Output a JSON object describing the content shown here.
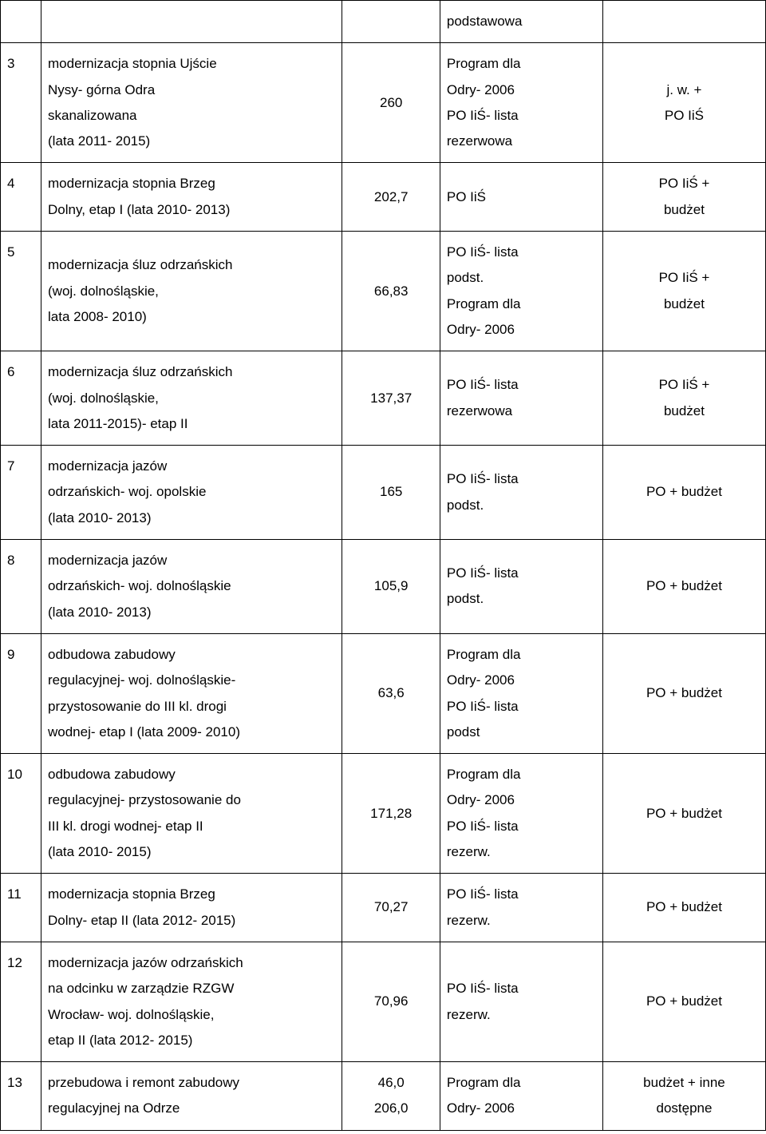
{
  "table": {
    "columns": {
      "num_width": 50,
      "desc_width": 370,
      "val_width": 120,
      "note_width": 200,
      "right_width": 200
    },
    "style": {
      "border_color": "#000000",
      "background_color": "#ffffff",
      "text_color": "#000000",
      "font_size": 17,
      "line_height": 1.9,
      "cell_padding": "10px 8px"
    },
    "header_row": {
      "num": "",
      "desc": "",
      "val": "",
      "note": "podstawowa",
      "right": ""
    },
    "rows": [
      {
        "num": "3",
        "desc": "modernizacja stopnia Ujście\nNysy- górna Odra\nskanalizowana\n(lata 2011- 2015)",
        "val": "260",
        "note": "Program dla\nOdry- 2006\nPO IiŚ- lista\nrezerwowa",
        "right": "j. w. +\nPO IiŚ"
      },
      {
        "num": "4",
        "desc": "modernizacja stopnia Brzeg\nDolny, etap I  (lata 2010- 2013)",
        "val": "202,7",
        "note": "PO IiŚ",
        "right": "PO IiŚ +\nbudżet"
      },
      {
        "num": "5",
        "desc": "modernizacja śluz odrzańskich\n(woj. dolnośląskie,\nlata 2008- 2010)",
        "val": "66,83",
        "note": "PO IiŚ- lista\npodst.\nProgram dla\nOdry- 2006",
        "right": "PO IiŚ +\nbudżet"
      },
      {
        "num": "6",
        "desc": "modernizacja śluz odrzańskich\n(woj. dolnośląskie,\nlata 2011-2015)- etap II",
        "val": "137,37",
        "note": "PO IiŚ- lista\nrezerwowa",
        "right": "PO IiŚ +\nbudżet"
      },
      {
        "num": "7",
        "desc": "modernizacja jazów\nodrzańskich- woj. opolskie\n(lata 2010- 2013)",
        "val": "165",
        "note": "PO IiŚ- lista\npodst.",
        "right": "PO + budżet"
      },
      {
        "num": "8",
        "desc": "modernizacja jazów\nodrzańskich- woj. dolnośląskie\n(lata 2010- 2013)",
        "val": "105,9",
        "note": "PO IiŚ- lista\npodst.",
        "right": "PO + budżet"
      },
      {
        "num": "9",
        "desc": "odbudowa zabudowy\nregulacyjnej- woj. dolnośląskie-\nprzystosowanie do III kl. drogi\nwodnej- etap I (lata 2009- 2010)",
        "val": "63,6",
        "note": "Program dla\nOdry- 2006\nPO IiŚ- lista\npodst",
        "right": "PO + budżet"
      },
      {
        "num": "10",
        "desc": "odbudowa zabudowy\nregulacyjnej- przystosowanie do\nIII kl. drogi wodnej- etap II\n(lata 2010- 2015)",
        "val": "171,28",
        "note": "Program dla\nOdry- 2006\nPO IiŚ- lista\nrezerw.",
        "right": "PO + budżet"
      },
      {
        "num": "11",
        "desc": "modernizacja stopnia Brzeg\nDolny- etap II (lata 2012- 2015)",
        "val": "70,27",
        "note": "PO IiŚ- lista\nrezerw.",
        "right": "PO + budżet"
      },
      {
        "num": "12",
        "desc": "modernizacja jazów odrzańskich\nna odcinku w zarządzie RZGW\nWrocław- woj. dolnośląskie,\netap II (lata 2012- 2015)",
        "val": "70,96",
        "note": "PO IiŚ- lista\nrezerw.",
        "right": "PO + budżet"
      },
      {
        "num": "13",
        "desc": "przebudowa i remont zabudowy\nregulacyjnej na Odrze",
        "val": "46,0\n206,0",
        "note": "Program dla\nOdry- 2006",
        "right": "budżet + inne\ndostępne"
      }
    ]
  }
}
